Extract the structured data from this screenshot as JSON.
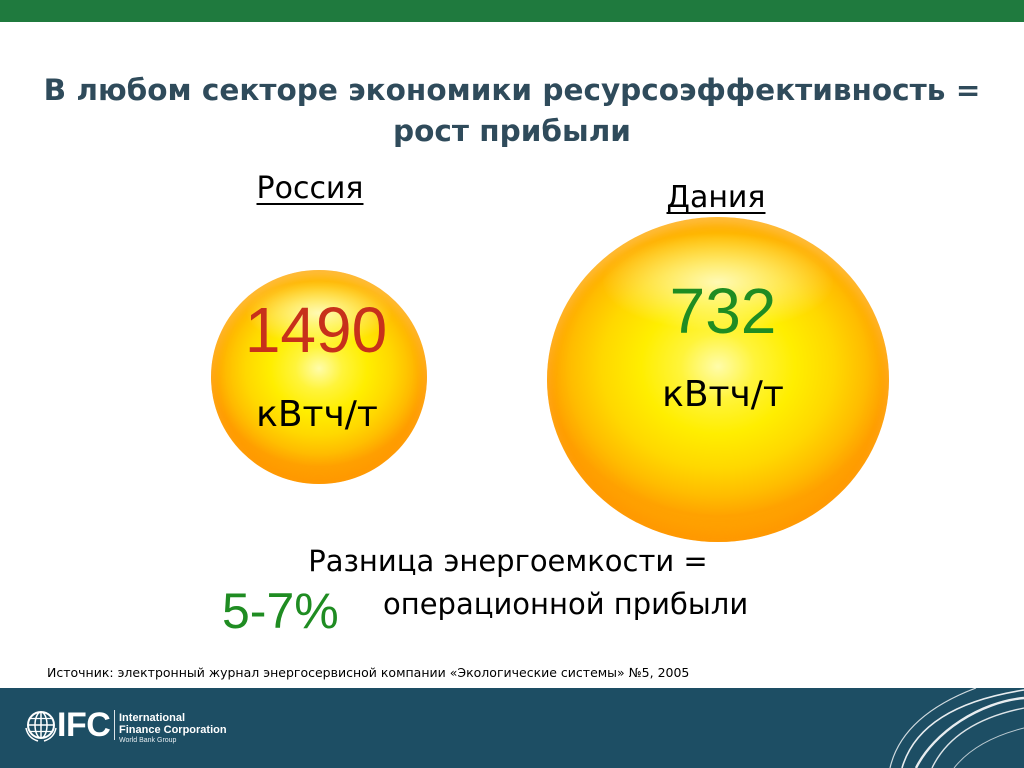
{
  "colors": {
    "top_bar": "#1f7a3e",
    "title_text": "#2f4b5b",
    "russia_value": "#c7301b",
    "denmark_value": "#1f8c22",
    "percent_value": "#1f8c22",
    "footer_band": "#1d4e64",
    "body_text": "#000000"
  },
  "title": {
    "line1": "В любом секторе экономики ресурсоэффективность =",
    "line2": "рост прибыли"
  },
  "comparison": [
    {
      "country": "Россия",
      "value": "1490",
      "unit": "кВтч/т"
    },
    {
      "country": "Дания",
      "value": "732",
      "unit": "кВтч/т"
    }
  ],
  "conclusion": {
    "line1": "Разница энергоемкости =",
    "percent": "5-7%",
    "line2": "операционной прибыли"
  },
  "source": "Источник: электронный журнал энергосервисной компании «Экологические системы» №5, 2005",
  "footer": {
    "logo_icon": "globe-icon",
    "logo_text": "IFC",
    "organization": [
      "International",
      "Finance Corporation",
      "World Bank Group"
    ],
    "decoration_icon": "swoosh-lines-icon"
  }
}
